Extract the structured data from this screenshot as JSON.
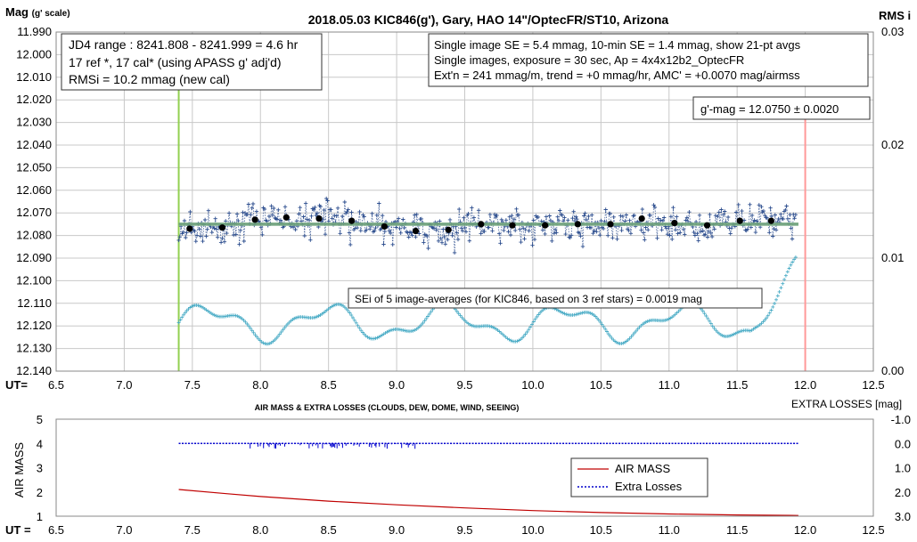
{
  "chart_data": [
    {
      "type": "scatter",
      "title": "2018.05.03  KIC846(g'),  Gary, HAO 14\"/OptecFR/ST10,  Arizona",
      "ylabel": "Mag",
      "ylabel_small": "(g' scale)",
      "y2label": "RMS i",
      "xlabel": "UT=",
      "xlim": [
        6.5,
        12.5
      ],
      "xticks": [
        "6.5",
        "7.0",
        "7.5",
        "8.0",
        "8.5",
        "9.0",
        "9.5",
        "10.0",
        "10.5",
        "11.0",
        "11.5",
        "12.0",
        "12.5"
      ],
      "ylim": [
        11.99,
        12.14
      ],
      "y_inverted": true,
      "yticks": [
        "11.990",
        "12.000",
        "12.010",
        "12.020",
        "12.030",
        "12.040",
        "12.050",
        "12.060",
        "12.070",
        "12.080",
        "12.090",
        "12.100",
        "12.110",
        "12.120",
        "12.130",
        "12.140"
      ],
      "y2lim": [
        0.0,
        0.03
      ],
      "y2ticks": [
        "0.03",
        "0.02",
        "0.01",
        "0.00"
      ],
      "grid": true,
      "info_left": [
        "JD4 range : 8241.808 - 8241.999 =  4.6  hr",
        "17 ref *, 17 cal* (using APASS g' adj'd)",
        "RMSi = 10.2 mmag (new cal)"
      ],
      "info_right": [
        "Single image SE = 5.4 mmag, 10-min SE = 1.4 mmag, show  21-pt avgs",
        "Single images, exposure = 30 sec, Ap = 4x4x12b2_OptecFR",
        "Ext'n = 241 mmag/m, trend =  +0 mmag/hr, AMC' = +0.0070 mag/airmss"
      ],
      "mag_box": "g'-mag = 12.0750 ± 0.0020",
      "sei_note": "SEi of 5 image-averages (for KIC846, based on 3 ref stars) = 0.0019  mag",
      "markers": {
        "start_ut": 7.4,
        "end_ut": 12.0,
        "start_color": "#92d050",
        "end_color": "#ff9999"
      },
      "mean_mag": 12.075,
      "averages": {
        "x": [
          7.48,
          7.72,
          7.96,
          8.19,
          8.43,
          8.67,
          8.91,
          9.14,
          9.38,
          9.62,
          9.85,
          10.09,
          10.33,
          10.57,
          10.8,
          11.04,
          11.28,
          11.52,
          11.75
        ],
        "y": [
          12.077,
          12.0765,
          12.073,
          12.072,
          12.0725,
          12.0735,
          12.076,
          12.078,
          12.0775,
          12.075,
          12.0755,
          12.0755,
          12.075,
          12.075,
          12.0725,
          12.0745,
          12.0755,
          12.0735,
          12.0735
        ]
      },
      "series": [
        {
          "name": "Single images",
          "color": "#2e4f8f",
          "style": "plus-dotted"
        },
        {
          "name": "RMS i",
          "color": "#4aacc6",
          "style": "plus"
        }
      ]
    },
    {
      "type": "line",
      "title": "AIR MASS & EXTRA LOSSES (CLOUDS, DEW, DOME, WIND, SEEING)",
      "ylabel": "AIR MASS",
      "y2label": "EXTRA LOSSES [mag]",
      "xlabel": "UT =",
      "xlim": [
        6.5,
        12.5
      ],
      "xticks": [
        "6.5",
        "7.0",
        "7.5",
        "8.0",
        "8.5",
        "9.0",
        "9.5",
        "10.0",
        "10.5",
        "11.0",
        "11.5",
        "12.0",
        "12.5"
      ],
      "ylim": [
        1,
        5
      ],
      "yticks": [
        "5",
        "4",
        "3",
        "2",
        "1"
      ],
      "y2lim": [
        3.0,
        -1.0
      ],
      "y2ticks": [
        "-1.0",
        "0.0",
        "1.0",
        "2.0",
        "3.0"
      ],
      "grid": false,
      "series": [
        {
          "name": "AIR MASS",
          "color": "#c00000",
          "x": [
            7.4,
            7.75,
            8.0,
            8.5,
            9.0,
            9.5,
            10.0,
            10.5,
            11.0,
            11.5,
            11.95
          ],
          "values": [
            2.1,
            1.93,
            1.81,
            1.62,
            1.47,
            1.34,
            1.23,
            1.15,
            1.09,
            1.05,
            1.03
          ]
        },
        {
          "name": "Extra Losses",
          "color": "#0000cc",
          "x": [
            7.4,
            11.95
          ],
          "values": [
            0.0,
            0.0
          ]
        }
      ]
    }
  ]
}
